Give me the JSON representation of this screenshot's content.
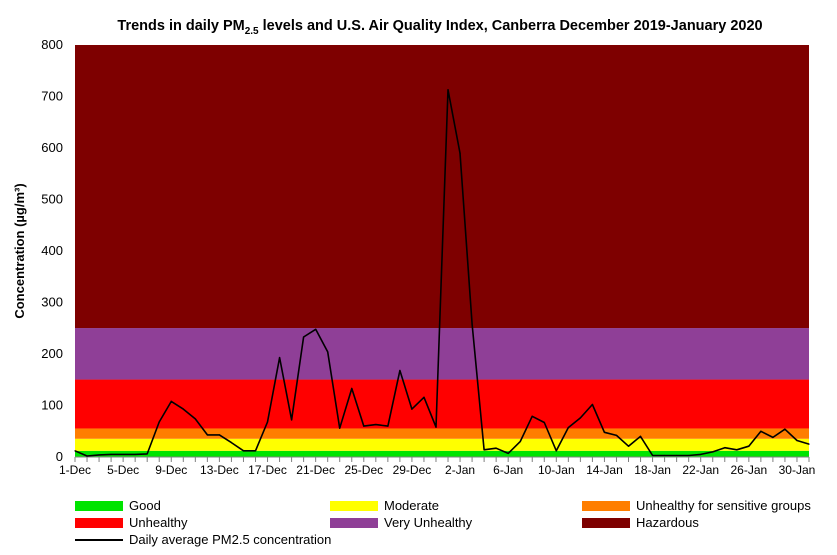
{
  "chart_data": {
    "type": "line",
    "title_main": "Trends in daily PM",
    "title_sub": "2.5",
    "title_rest": " levels and U.S. Air Quality Index, Canberra December 2019-January 2020",
    "ylabel": "Concentration (µg/m³)",
    "ylim": [
      0,
      800
    ],
    "yticks": [
      0,
      100,
      200,
      300,
      400,
      500,
      600,
      700,
      800
    ],
    "xlabels": [
      "1-Dec",
      "5-Dec",
      "9-Dec",
      "13-Dec",
      "17-Dec",
      "21-Dec",
      "25-Dec",
      "29-Dec",
      "2-Jan",
      "6-Jan",
      "10-Jan",
      "14-Jan",
      "18-Jan",
      "22-Jan",
      "26-Jan",
      "30-Jan"
    ],
    "bands": [
      {
        "name": "Good",
        "from": 0,
        "to": 12,
        "color": "#00e400"
      },
      {
        "name": "Moderate",
        "from": 12,
        "to": 35.4,
        "color": "#ffff00"
      },
      {
        "name": "Unhealthy for sensitive groups",
        "from": 35.4,
        "to": 55.4,
        "color": "#ff7e00"
      },
      {
        "name": "Unhealthy",
        "from": 55.4,
        "to": 150.4,
        "color": "#ff0000"
      },
      {
        "name": "Very Unhealthy",
        "from": 150.4,
        "to": 250.4,
        "color": "#8f3f97"
      },
      {
        "name": "Hazardous",
        "from": 250.4,
        "to": 800,
        "color": "#7e0000"
      }
    ],
    "series": [
      {
        "name": "Daily average PM2.5 concentration",
        "color": "#000000",
        "values": [
          12,
          2,
          4,
          5,
          5,
          5,
          6,
          68,
          108,
          93,
          74,
          43,
          43,
          28,
          12,
          12,
          68,
          193,
          72,
          233,
          248,
          204,
          56,
          133,
          60,
          63,
          60,
          168,
          93,
          116,
          58,
          713,
          590,
          258,
          14,
          17,
          7,
          30,
          79,
          67,
          12,
          57,
          76,
          102,
          48,
          42,
          21,
          40,
          3,
          3,
          3,
          3,
          5,
          10,
          18,
          14,
          21,
          50,
          38,
          54,
          32,
          25
        ]
      }
    ]
  },
  "legend": {
    "good": "Good",
    "moderate": "Moderate",
    "usg": "Unhealthy for sensitive groups",
    "unhealthy": "Unhealthy",
    "very_unhealthy": "Very Unhealthy",
    "hazardous": "Hazardous",
    "line": "Daily average PM2.5 concentration"
  }
}
